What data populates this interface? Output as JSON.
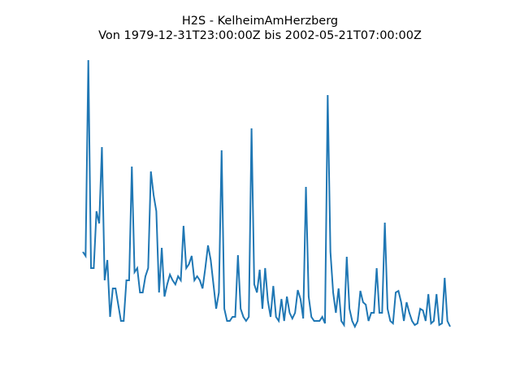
{
  "chart_data": {
    "type": "line",
    "title": "H2S - KelheimAmHerzberg",
    "subtitle": "Von 1979-12-31T23:00:00Z bis 2002-05-21T07:00:00Z",
    "color": "#1f77b4",
    "ylim": [
      0,
      340
    ],
    "values": [
      98,
      93,
      334,
      78,
      78,
      148,
      133,
      227,
      63,
      88,
      18,
      53,
      53,
      33,
      13,
      13,
      63,
      63,
      203,
      73,
      78,
      48,
      48,
      68,
      78,
      197,
      168,
      148,
      48,
      103,
      43,
      58,
      70,
      63,
      58,
      68,
      63,
      130,
      78,
      83,
      93,
      63,
      68,
      63,
      53,
      78,
      106,
      88,
      58,
      28,
      48,
      223,
      28,
      13,
      13,
      18,
      18,
      94,
      28,
      18,
      13,
      18,
      250,
      58,
      48,
      76,
      28,
      78,
      38,
      18,
      56,
      18,
      13,
      40,
      13,
      43,
      23,
      16,
      23,
      51,
      40,
      16,
      178,
      43,
      18,
      13,
      13,
      13,
      18,
      10,
      291,
      98,
      48,
      23,
      53,
      13,
      8,
      92,
      28,
      13,
      6,
      13,
      50,
      36,
      33,
      13,
      23,
      23,
      78,
      23,
      23,
      134,
      28,
      13,
      10,
      48,
      50,
      36,
      13,
      36,
      23,
      13,
      8,
      10,
      28,
      26,
      13,
      46,
      10,
      13,
      46,
      8,
      10,
      66,
      13,
      6
    ]
  }
}
